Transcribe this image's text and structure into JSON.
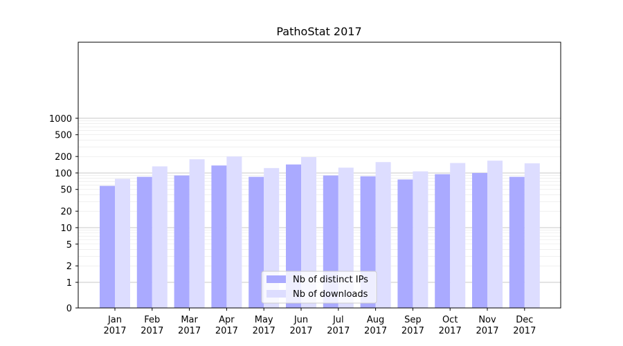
{
  "chart_data": {
    "type": "bar",
    "title": "PathoStat 2017",
    "xlabel": "",
    "ylabel": "",
    "yscale": "symlog",
    "ylim": [
      0,
      1200
    ],
    "yticks": [
      "0",
      "1",
      "2",
      "5",
      "10",
      "20",
      "50",
      "100",
      "200",
      "500",
      "1000"
    ],
    "grid": true,
    "legend_position": "bottom-center",
    "categories": [
      "Jan\n2017",
      "Feb\n2017",
      "Mar\n2017",
      "Apr\n2017",
      "May\n2017",
      "Jun\n2017",
      "Jul\n2017",
      "Aug\n2017",
      "Sep\n2017",
      "Oct\n2017",
      "Nov\n2017",
      "Dec\n2017"
    ],
    "series": [
      {
        "name": "Nb of distinct IPs",
        "color": "#aaaaff",
        "values": [
          58,
          85,
          90,
          137,
          85,
          143,
          90,
          87,
          76,
          95,
          100,
          85
        ]
      },
      {
        "name": "Nb of downloads",
        "color": "#ddddff",
        "values": [
          78,
          132,
          178,
          200,
          123,
          195,
          125,
          158,
          107,
          152,
          168,
          150
        ]
      }
    ]
  }
}
